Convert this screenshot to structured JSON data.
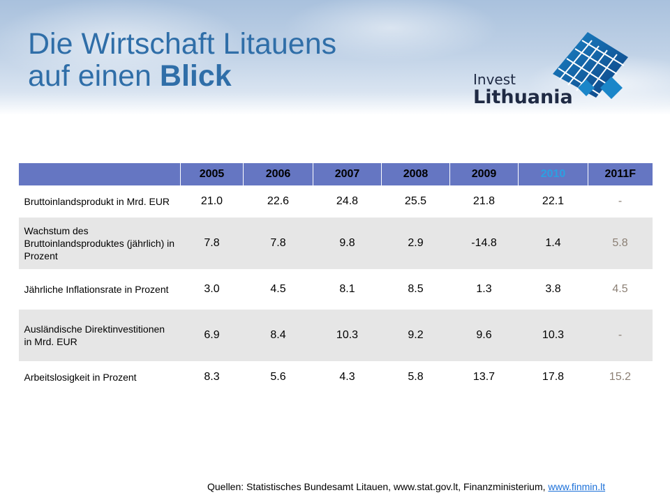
{
  "title": {
    "line1": "Die Wirtschaft Litauens",
    "line2_regular": "auf einen ",
    "line2_bold": "Blick"
  },
  "logo": {
    "line1": "Invest",
    "line2": "Lithuania"
  },
  "table": {
    "years": [
      "2005",
      "2006",
      "2007",
      "2008",
      "2009",
      "2010",
      "2011F"
    ],
    "rows": [
      {
        "label": "Bruttoinlandsprodukt in Mrd. EUR",
        "values": [
          "21.0",
          "22.6",
          "24.8",
          "25.5",
          "21.8",
          "22.1",
          "-"
        ]
      },
      {
        "label": "Wachstum des Bruttoinlandsproduktes (jährlich) in Prozent",
        "values": [
          "7.8",
          "7.8",
          "9.8",
          "2.9",
          "-14.8",
          "1.4",
          "5.8"
        ]
      },
      {
        "label": "Jährliche Inflationsrate in Prozent",
        "values": [
          "3.0",
          "4.5",
          "8.1",
          "8.5",
          "1.3",
          "3.8",
          "4.5"
        ]
      },
      {
        "label": "Ausländische Direktinvestitionen in Mrd. EUR",
        "values": [
          "6.9",
          "8.4",
          "10.3",
          "9.2",
          "9.6",
          "10.3",
          "-"
        ]
      },
      {
        "label": "Arbeitslosigkeit in Prozent",
        "values": [
          "8.3",
          "5.6",
          "4.3",
          "5.8",
          "13.7",
          "17.8",
          "15.2"
        ]
      }
    ]
  },
  "source": {
    "text": "Quellen: Statistisches Bundesamt Litauen, www.stat.gov.lt,  Finanzministerium, ",
    "link": "www.finmin.lt"
  },
  "colors": {
    "title": "#2f6ea8",
    "header_row": "#6576c2",
    "highlight_year": "#2ba0e2",
    "forecast_value": "#8b7f74",
    "alt_row": "#e6e6e6",
    "link": "#1a6fd8"
  }
}
